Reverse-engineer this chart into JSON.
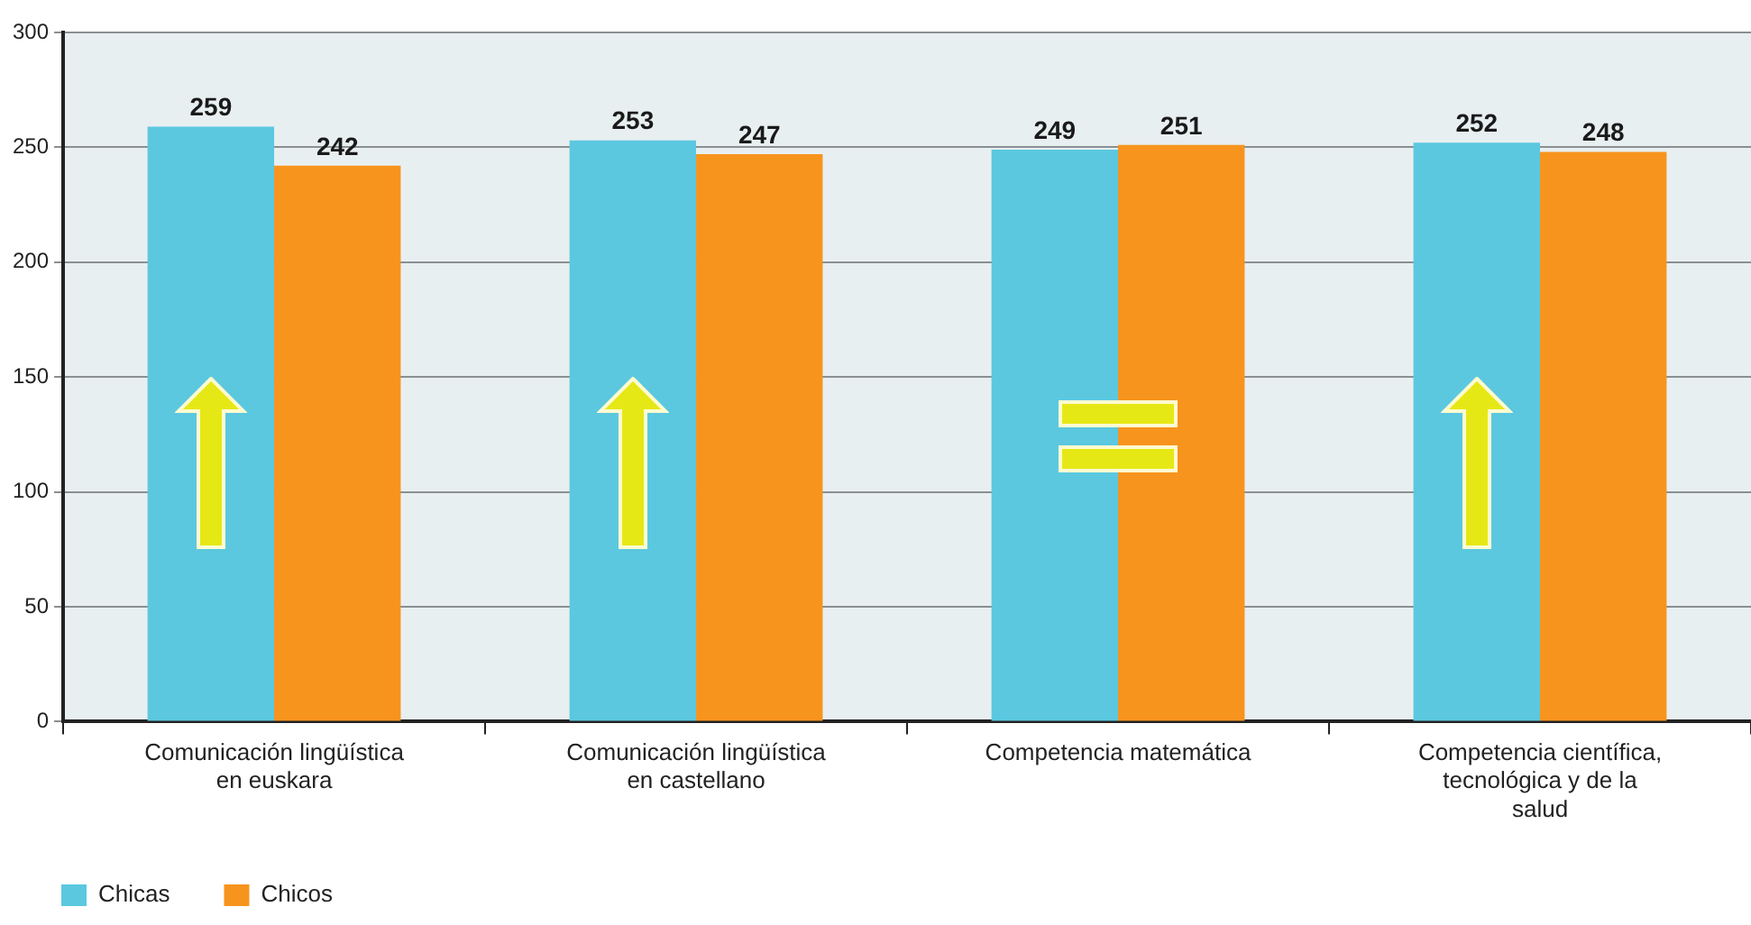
{
  "chart_data": {
    "type": "bar",
    "categories": [
      "Comunicación lingüística en euskara",
      "Comunicación lingüística en castellano",
      "Competencia matemática",
      "Competencia científica, tecnológica y de la salud"
    ],
    "series": [
      {
        "name": "Chicas",
        "color": "#5bc8e0",
        "values": [
          259,
          253,
          249,
          252
        ]
      },
      {
        "name": "Chicos",
        "color": "#f7941d",
        "values": [
          242,
          247,
          251,
          248
        ]
      }
    ],
    "ylim": [
      0,
      300
    ],
    "yticks": [
      0,
      50,
      100,
      150,
      200,
      250,
      300
    ],
    "grid": "y",
    "legend": "bottom left",
    "data_labels": true
  }
}
